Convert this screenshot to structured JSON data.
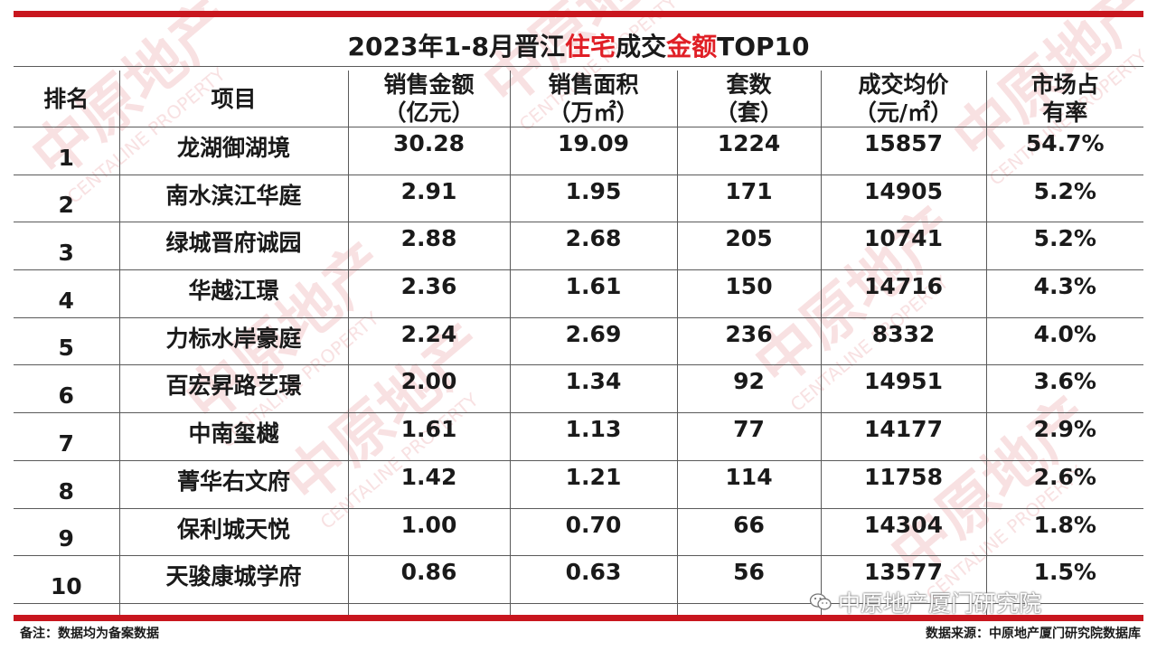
{
  "title": {
    "prefix": "2023年1-8月晋江",
    "highlight1": "住宅",
    "middle": "成交",
    "highlight2": "金额",
    "suffix": "TOP10"
  },
  "headers": [
    {
      "line1": "排名",
      "line2": ""
    },
    {
      "line1": "项目",
      "line2": ""
    },
    {
      "line1": "销售金额",
      "line2": "（亿元）"
    },
    {
      "line1": "销售面积",
      "line2": "（万㎡）"
    },
    {
      "line1": "套数",
      "line2": "（套）"
    },
    {
      "line1": "成交均价",
      "line2": "（元/㎡）"
    },
    {
      "line1": "市场占",
      "line2": "有率"
    }
  ],
  "rows": [
    {
      "rank": "1",
      "project": "龙湖御湖境",
      "amount": "30.28",
      "area": "19.09",
      "units": "1224",
      "price": "15857",
      "share": "54.7%"
    },
    {
      "rank": "2",
      "project": "南水滨江华庭",
      "amount": "2.91",
      "area": "1.95",
      "units": "171",
      "price": "14905",
      "share": "5.2%"
    },
    {
      "rank": "3",
      "project": "绿城晋府诚园",
      "amount": "2.88",
      "area": "2.68",
      "units": "205",
      "price": "10741",
      "share": "5.2%"
    },
    {
      "rank": "4",
      "project": "华越江璟",
      "amount": "2.36",
      "area": "1.61",
      "units": "150",
      "price": "14716",
      "share": "4.3%"
    },
    {
      "rank": "5",
      "project": "力标水岸豪庭",
      "amount": "2.24",
      "area": "2.69",
      "units": "236",
      "price": "8332",
      "share": "4.0%"
    },
    {
      "rank": "6",
      "project": "百宏昇路艺璟",
      "amount": "2.00",
      "area": "1.34",
      "units": "92",
      "price": "14951",
      "share": "3.6%"
    },
    {
      "rank": "7",
      "project": "中南玺樾",
      "amount": "1.61",
      "area": "1.13",
      "units": "77",
      "price": "14177",
      "share": "2.9%"
    },
    {
      "rank": "8",
      "project": "菁华右文府",
      "amount": "1.42",
      "area": "1.21",
      "units": "114",
      "price": "11758",
      "share": "2.6%"
    },
    {
      "rank": "9",
      "project": "保利城天悦",
      "amount": "1.00",
      "area": "0.70",
      "units": "66",
      "price": "14304",
      "share": "1.8%"
    },
    {
      "rank": "10",
      "project": "天骏康城学府",
      "amount": "0.86",
      "area": "0.63",
      "units": "56",
      "price": "13577",
      "share": "1.5%"
    }
  ],
  "footer": {
    "note": "备注：数据均为备案数据",
    "source": "数据来源：中原地产厦门研究院数据库",
    "brand": "中原地产厦门研究院"
  },
  "watermark": {
    "text": "中原地产",
    "subtext": "CENTALINE PROPERTY"
  },
  "colors": {
    "accent": "#e01f26",
    "bar": "#c8161e",
    "watermark": "#f3c9cb"
  }
}
